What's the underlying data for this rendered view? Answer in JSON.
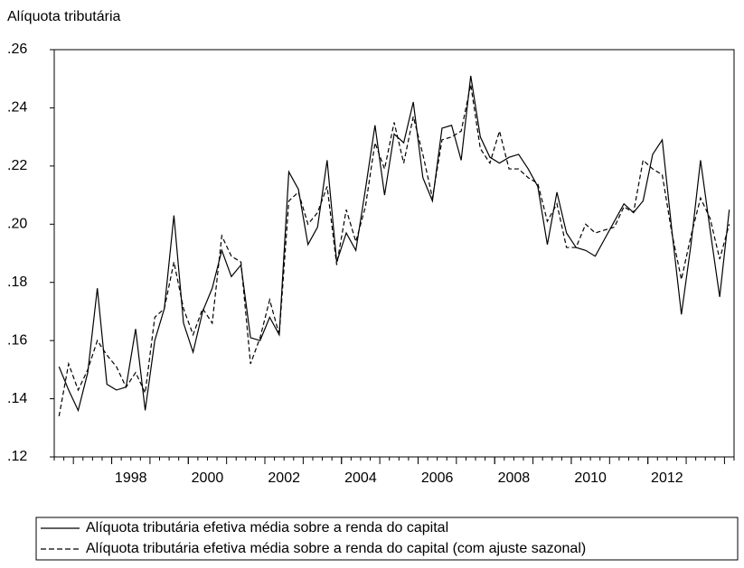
{
  "chart_data": {
    "type": "line",
    "y_label": "Alíquota tributária",
    "x": [
      1996.625,
      1996.875,
      1997.125,
      1997.375,
      1997.625,
      1997.875,
      1998.125,
      1998.375,
      1998.625,
      1998.875,
      1999.125,
      1999.375,
      1999.625,
      1999.875,
      2000.125,
      2000.375,
      2000.625,
      2000.875,
      2001.125,
      2001.375,
      2001.625,
      2001.875,
      2002.125,
      2002.375,
      2002.625,
      2002.875,
      2003.125,
      2003.375,
      2003.625,
      2003.875,
      2004.125,
      2004.375,
      2004.625,
      2004.875,
      2005.125,
      2005.375,
      2005.625,
      2005.875,
      2006.125,
      2006.375,
      2006.625,
      2006.875,
      2007.125,
      2007.375,
      2007.625,
      2007.875,
      2008.125,
      2008.375,
      2008.625,
      2008.875,
      2009.125,
      2009.375,
      2009.625,
      2009.875,
      2010.125,
      2010.375,
      2010.625,
      2010.875,
      2011.125,
      2011.375,
      2011.625,
      2011.875,
      2012.125,
      2012.375,
      2012.625,
      2012.875,
      2013.125,
      2013.375,
      2013.625,
      2013.875,
      2014.125
    ],
    "series": [
      {
        "name": "Alíquota tributária efetiva média sobre a renda do capital",
        "color": "#000000",
        "dash": false,
        "values": [
          0.151,
          0.143,
          0.136,
          0.149,
          0.178,
          0.145,
          0.143,
          0.144,
          0.164,
          0.136,
          0.16,
          0.171,
          0.203,
          0.166,
          0.156,
          0.17,
          0.178,
          0.191,
          0.182,
          0.186,
          0.161,
          0.16,
          0.168,
          0.162,
          0.218,
          0.212,
          0.193,
          0.199,
          0.222,
          0.187,
          0.197,
          0.191,
          0.212,
          0.234,
          0.21,
          0.231,
          0.228,
          0.242,
          0.216,
          0.208,
          0.233,
          0.234,
          0.222,
          0.251,
          0.23,
          0.223,
          0.221,
          0.223,
          0.224,
          0.219,
          0.213,
          0.193,
          0.211,
          0.197,
          0.192,
          0.191,
          0.189,
          0.195,
          0.201,
          0.207,
          0.204,
          0.208,
          0.224,
          0.229,
          0.198,
          0.169,
          0.193,
          0.222,
          0.198,
          0.175,
          0.205
        ]
      },
      {
        "name": "Alíquota tributária efetiva média sobre a renda do capital (com ajuste sazonal)",
        "color": "#000000",
        "dash": true,
        "values": [
          0.134,
          0.152,
          0.143,
          0.15,
          0.16,
          0.155,
          0.151,
          0.144,
          0.149,
          0.142,
          0.168,
          0.171,
          0.187,
          0.171,
          0.162,
          0.171,
          0.166,
          0.196,
          0.189,
          0.187,
          0.152,
          0.161,
          0.174,
          0.162,
          0.208,
          0.211,
          0.2,
          0.204,
          0.213,
          0.186,
          0.205,
          0.194,
          0.206,
          0.228,
          0.219,
          0.235,
          0.221,
          0.237,
          0.224,
          0.209,
          0.229,
          0.23,
          0.232,
          0.248,
          0.226,
          0.221,
          0.232,
          0.219,
          0.219,
          0.216,
          0.214,
          0.201,
          0.207,
          0.192,
          0.192,
          0.2,
          0.197,
          0.198,
          0.199,
          0.206,
          0.204,
          0.222,
          0.219,
          0.217,
          0.197,
          0.181,
          0.196,
          0.209,
          0.202,
          0.188,
          0.2
        ]
      }
    ],
    "xlim": [
      1996.5,
      2014.25
    ],
    "xticks": [
      1998,
      2000,
      2002,
      2004,
      2006,
      2008,
      2010,
      2012
    ],
    "ylim": [
      0.12,
      0.26
    ],
    "yticks": [
      {
        "value": 0.12,
        "label": ".12"
      },
      {
        "value": 0.14,
        "label": ".14"
      },
      {
        "value": 0.16,
        "label": ".16"
      },
      {
        "value": 0.18,
        "label": ".18"
      },
      {
        "value": 0.2,
        "label": ".20"
      },
      {
        "value": 0.22,
        "label": ".22"
      },
      {
        "value": 0.24,
        "label": ".24"
      },
      {
        "value": 0.26,
        "label": ".26"
      }
    ],
    "grid": false,
    "legend": "bottom"
  }
}
